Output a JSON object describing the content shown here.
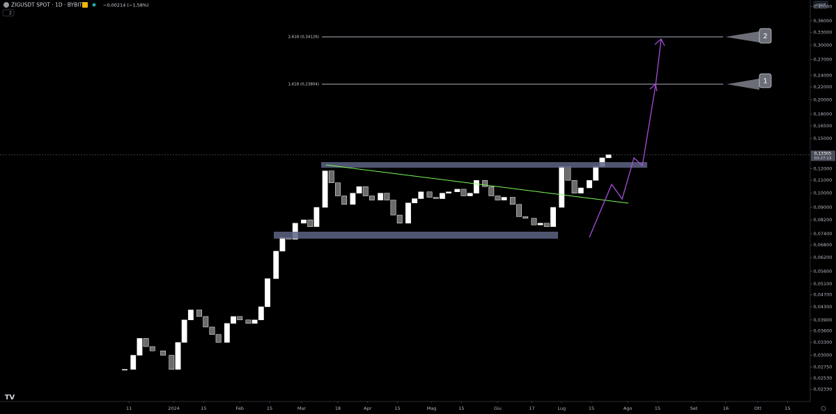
{
  "header": {
    "symbol": "ZIGUSDT SPOT · 1D · BYBIT",
    "change": "−0,00214 (−1,58%)",
    "indicator_count": "2",
    "currency": "USDT"
  },
  "chart_data": {
    "type": "candlestick",
    "scale": "log",
    "color_up": "#ffffff",
    "color_down": "#6b6b6b",
    "x": [
      -2,
      2,
      5,
      8,
      11,
      16,
      20,
      23,
      26,
      29,
      33,
      36,
      39,
      42,
      46,
      49,
      52,
      56,
      59,
      62,
      65,
      69,
      72,
      75,
      78,
      82,
      85,
      88,
      92,
      95,
      98,
      101,
      105,
      108,
      111,
      114,
      118,
      121,
      124,
      127,
      131,
      134,
      137,
      141,
      144,
      147,
      150,
      154,
      157,
      160,
      163,
      167,
      170,
      173,
      176,
      180,
      183,
      186,
      190,
      193,
      196,
      199,
      203,
      206,
      209,
      212,
      216,
      219,
      222,
      225
    ],
    "values": [
      0.027,
      0.03,
      0.034,
      0.032,
      0.031,
      0.03,
      0.027,
      0.033,
      0.039,
      0.042,
      0.04,
      0.037,
      0.035,
      0.033,
      0.038,
      0.04,
      0.039,
      0.038,
      0.039,
      0.043,
      0.053,
      0.065,
      0.072,
      0.071,
      0.08,
      0.082,
      0.078,
      0.09,
      0.118,
      0.108,
      0.098,
      0.092,
      0.1,
      0.105,
      0.098,
      0.095,
      0.1,
      0.095,
      0.085,
      0.08,
      0.093,
      0.096,
      0.101,
      0.097,
      0.096,
      0.1,
      0.101,
      0.103,
      0.098,
      0.1,
      0.11,
      0.105,
      0.098,
      0.095,
      0.097,
      0.092,
      0.084,
      0.083,
      0.079,
      0.08,
      0.078,
      0.09,
      0.122,
      0.11,
      0.1,
      0.104,
      0.11,
      0.122,
      0.13,
      0.133
    ],
    "xlim": [
      -60.5,
      319.6
    ],
    "xticks": [
      {
        "value": 0,
        "label": "11"
      },
      {
        "value": 21,
        "label": "2024"
      },
      {
        "value": 35,
        "label": "15"
      },
      {
        "value": 52,
        "label": "Feb"
      },
      {
        "value": 66,
        "label": "15"
      },
      {
        "value": 81,
        "label": "Mar"
      },
      {
        "value": 98,
        "label": "18"
      },
      {
        "value": 112,
        "label": "Apr"
      },
      {
        "value": 126,
        "label": "15"
      },
      {
        "value": 142,
        "label": "Mag"
      },
      {
        "value": 156,
        "label": "15"
      },
      {
        "value": 173,
        "label": "Giu"
      },
      {
        "value": 189,
        "label": "17"
      },
      {
        "value": 203,
        "label": "Lug"
      },
      {
        "value": 217,
        "label": "15"
      },
      {
        "value": 234,
        "label": "Ago"
      },
      {
        "value": 248,
        "label": "15"
      },
      {
        "value": 265,
        "label": "Set"
      },
      {
        "value": 280,
        "label": "16"
      },
      {
        "value": 295,
        "label": "Ott"
      },
      {
        "value": 309,
        "label": "15"
      }
    ],
    "ylim": [
      0.0215,
      0.42
    ],
    "yticks": [
      {
        "value": 0.4,
        "label": "0,40000"
      },
      {
        "value": 0.36,
        "label": "0,36000"
      },
      {
        "value": 0.33,
        "label": "0,33000"
      },
      {
        "value": 0.3,
        "label": "0,30000"
      },
      {
        "value": 0.27,
        "label": "0,27000"
      },
      {
        "value": 0.24,
        "label": "0,24000"
      },
      {
        "value": 0.22,
        "label": "0,22000"
      },
      {
        "value": 0.2,
        "label": "0,20000"
      },
      {
        "value": 0.18,
        "label": "0,18000"
      },
      {
        "value": 0.165,
        "label": "0,16500"
      },
      {
        "value": 0.15,
        "label": "0,15000"
      },
      {
        "value": 0.12,
        "label": "0,12000"
      },
      {
        "value": 0.11,
        "label": "0,11000"
      },
      {
        "value": 0.1,
        "label": "0,10000"
      },
      {
        "value": 0.09,
        "label": "0,09000"
      },
      {
        "value": 0.082,
        "label": "0,08200"
      },
      {
        "value": 0.074,
        "label": "0,07400"
      },
      {
        "value": 0.068,
        "label": "0,06800"
      },
      {
        "value": 0.062,
        "label": "0,06200"
      },
      {
        "value": 0.056,
        "label": "0,05600"
      },
      {
        "value": 0.051,
        "label": "0,05100"
      },
      {
        "value": 0.047,
        "label": "0,04700"
      },
      {
        "value": 0.043,
        "label": "0,04300"
      },
      {
        "value": 0.039,
        "label": "0,03900"
      },
      {
        "value": 0.036,
        "label": "0,03600"
      },
      {
        "value": 0.033,
        "label": "0,03300"
      },
      {
        "value": 0.03,
        "label": "0,03000"
      },
      {
        "value": 0.0275,
        "label": "0,02750"
      },
      {
        "value": 0.0253,
        "label": "0,02530"
      },
      {
        "value": 0.0233,
        "label": "0,02330"
      }
    ],
    "last_price": {
      "value": 0.13305,
      "label": "0,13305"
    },
    "countdown": "03:27:13",
    "annotations": {
      "fib_1": "1,618 (0,23804)",
      "fib_2": "2,618 (0,34126)",
      "target_1": "1",
      "target_2": "2"
    }
  }
}
